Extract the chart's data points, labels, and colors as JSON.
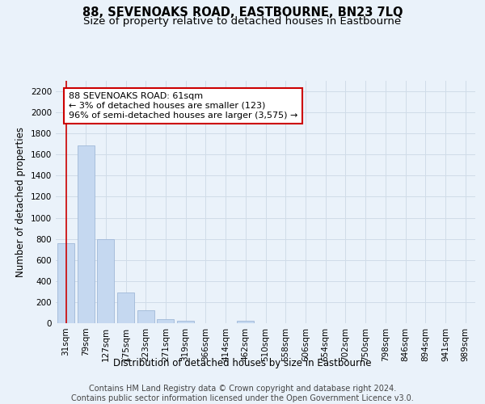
{
  "title": "88, SEVENOAKS ROAD, EASTBOURNE, BN23 7LQ",
  "subtitle": "Size of property relative to detached houses in Eastbourne",
  "xlabel": "Distribution of detached houses by size in Eastbourne",
  "ylabel": "Number of detached properties",
  "footer_line1": "Contains HM Land Registry data © Crown copyright and database right 2024.",
  "footer_line2": "Contains public sector information licensed under the Open Government Licence v3.0.",
  "categories": [
    "31sqm",
    "79sqm",
    "127sqm",
    "175sqm",
    "223sqm",
    "271sqm",
    "319sqm",
    "366sqm",
    "414sqm",
    "462sqm",
    "510sqm",
    "558sqm",
    "606sqm",
    "654sqm",
    "702sqm",
    "750sqm",
    "798sqm",
    "846sqm",
    "894sqm",
    "941sqm",
    "989sqm"
  ],
  "values": [
    760,
    1690,
    800,
    295,
    120,
    35,
    25,
    0,
    0,
    20,
    0,
    0,
    0,
    0,
    0,
    0,
    0,
    0,
    0,
    0,
    0
  ],
  "bar_color": "#c5d8f0",
  "bar_edge_color": "#a0b8d8",
  "ylim": [
    0,
    2300
  ],
  "yticks": [
    0,
    200,
    400,
    600,
    800,
    1000,
    1200,
    1400,
    1600,
    1800,
    2000,
    2200
  ],
  "annotation_text": "88 SEVENOAKS ROAD: 61sqm\n← 3% of detached houses are smaller (123)\n96% of semi-detached houses are larger (3,575) →",
  "annotation_box_color": "#ffffff",
  "annotation_box_edge_color": "#cc0000",
  "grid_color": "#d0dce8",
  "background_color": "#eaf2fa",
  "axes_background": "#eaf2fa",
  "title_fontsize": 10.5,
  "subtitle_fontsize": 9.5,
  "label_fontsize": 8.5,
  "tick_fontsize": 7.5,
  "footer_fontsize": 7.0,
  "annotation_fontsize": 8.0
}
